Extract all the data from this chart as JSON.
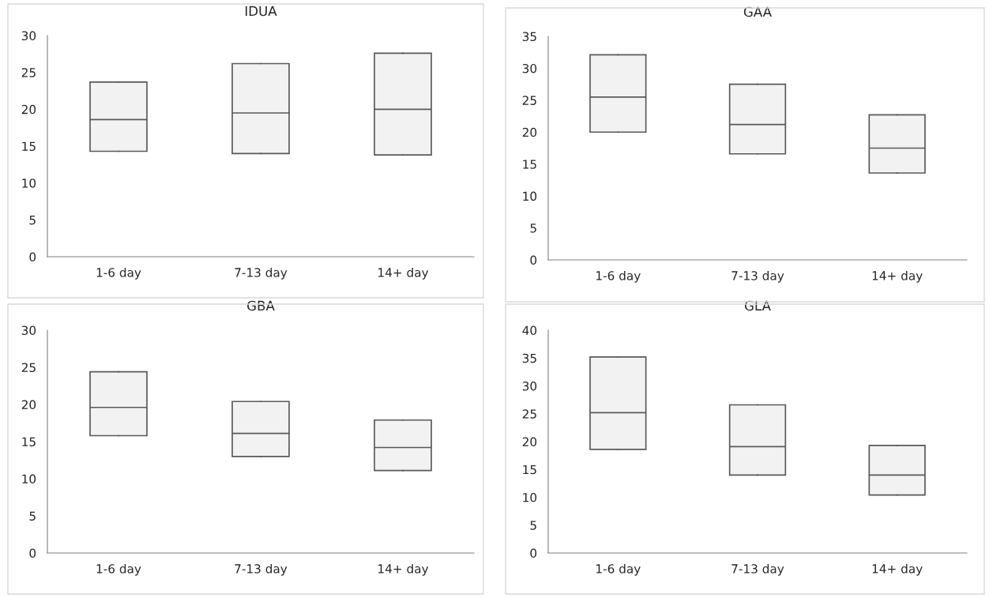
{
  "chart_data": [
    {
      "type": "box",
      "title": "IDUA",
      "categories": [
        "1-6 day",
        "7-13 day",
        "14+ day"
      ],
      "color": "#f2f2f2",
      "ylim": [
        0,
        30
      ],
      "yticks": [
        0,
        5,
        10,
        15,
        20,
        25,
        30
      ],
      "grid": false,
      "legend": false,
      "boxes": [
        {
          "low": 14.3,
          "q1": 14.3,
          "median": 18.6,
          "q3": 23.7,
          "high": 23.7
        },
        {
          "low": 14.0,
          "q1": 14.0,
          "median": 19.5,
          "q3": 26.2,
          "high": 26.2
        },
        {
          "low": 13.8,
          "q1": 13.8,
          "median": 20.0,
          "q3": 27.6,
          "high": 27.6
        }
      ]
    },
    {
      "type": "box",
      "title": "GAA",
      "categories": [
        "1-6 day",
        "7-13 day",
        "14+ day"
      ],
      "color": "#f2f2f2",
      "ylim": [
        0,
        35
      ],
      "yticks": [
        0,
        5,
        10,
        15,
        20,
        25,
        30,
        35
      ],
      "grid": false,
      "legend": false,
      "boxes": [
        {
          "low": 20.0,
          "q1": 20.0,
          "median": 25.5,
          "q3": 32.1,
          "high": 32.1
        },
        {
          "low": 16.6,
          "q1": 16.6,
          "median": 21.2,
          "q3": 27.5,
          "high": 27.5
        },
        {
          "low": 13.6,
          "q1": 13.6,
          "median": 17.5,
          "q3": 22.7,
          "high": 22.7
        }
      ]
    },
    {
      "type": "box",
      "title": "GBA",
      "categories": [
        "1-6 day",
        "7-13 day",
        "14+ day"
      ],
      "color": "#f2f2f2",
      "ylim": [
        0,
        30
      ],
      "yticks": [
        0,
        5,
        10,
        15,
        20,
        25,
        30
      ],
      "grid": false,
      "legend": false,
      "boxes": [
        {
          "low": 15.8,
          "q1": 15.8,
          "median": 19.6,
          "q3": 24.4,
          "high": 24.4
        },
        {
          "low": 13.0,
          "q1": 13.0,
          "median": 16.1,
          "q3": 20.4,
          "high": 20.4
        },
        {
          "low": 11.1,
          "q1": 11.1,
          "median": 14.2,
          "q3": 17.9,
          "high": 17.9
        }
      ]
    },
    {
      "type": "box",
      "title": "GLA",
      "categories": [
        "1-6 day",
        "7-13 day",
        "14+ day"
      ],
      "color": "#f2f2f2",
      "ylim": [
        0,
        40
      ],
      "yticks": [
        0,
        5,
        10,
        15,
        20,
        25,
        30,
        35,
        40
      ],
      "grid": false,
      "legend": false,
      "boxes": [
        {
          "low": 18.6,
          "q1": 18.6,
          "median": 25.2,
          "q3": 35.2,
          "high": 35.2
        },
        {
          "low": 14.0,
          "q1": 14.0,
          "median": 19.1,
          "q3": 26.6,
          "high": 26.6
        },
        {
          "low": 10.4,
          "q1": 10.4,
          "median": 14.0,
          "q3": 19.3,
          "high": 19.3
        }
      ]
    }
  ]
}
